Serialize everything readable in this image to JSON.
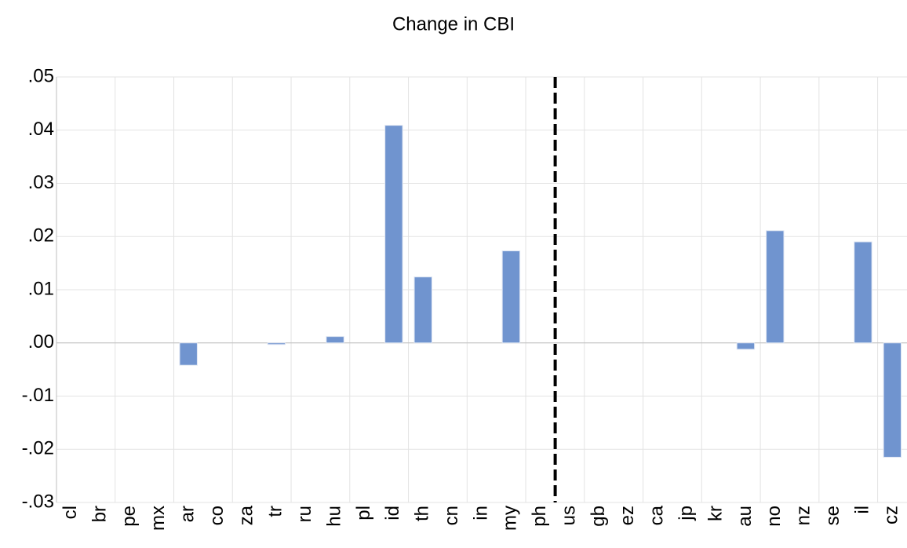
{
  "chart_data": {
    "type": "bar",
    "title": "Change in CBI",
    "categories": [
      "cl",
      "br",
      "pe",
      "mx",
      "ar",
      "co",
      "za",
      "tr",
      "ru",
      "hu",
      "pl",
      "id",
      "th",
      "cn",
      "in",
      "my",
      "ph",
      "us",
      "gb",
      "ez",
      "ca",
      "jp",
      "kr",
      "au",
      "no",
      "nz",
      "se",
      "il",
      "cz"
    ],
    "values": [
      0,
      0,
      0,
      0,
      -0.0042,
      0,
      0,
      -0.0003,
      0,
      0.0012,
      0,
      0.0409,
      0.0124,
      0,
      0,
      0.0173,
      0,
      0,
      0,
      0,
      0,
      0,
      0,
      -0.0012,
      0.0211,
      0,
      0,
      0.019,
      -0.0215
    ],
    "color": "#7094cf",
    "ylim": [
      -0.03,
      0.05
    ],
    "yticks": [
      {
        "value": -0.03,
        "label": "-.03"
      },
      {
        "value": -0.02,
        "label": "-.02"
      },
      {
        "value": -0.01,
        "label": "-.01"
      },
      {
        "value": 0,
        "label": ".00"
      },
      {
        "value": 0.01,
        "label": ".01"
      },
      {
        "value": 0.02,
        "label": ".02"
      },
      {
        "value": 0.03,
        "label": ".03"
      },
      {
        "value": 0.04,
        "label": ".04"
      },
      {
        "value": 0.05,
        "label": ".05"
      }
    ],
    "grid": true
  }
}
